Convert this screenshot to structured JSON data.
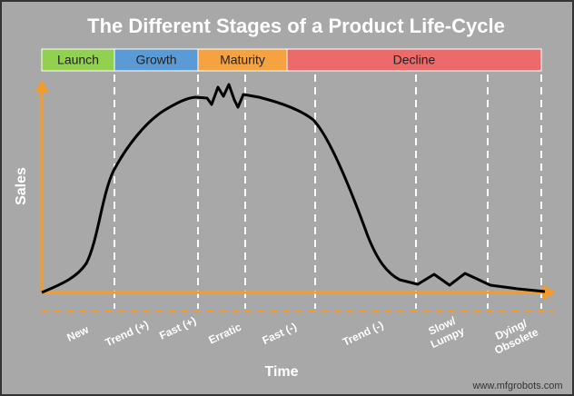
{
  "title": "The Different Stages of a Product Life-Cycle",
  "stages": [
    "Launch",
    "Growth",
    "Maturity",
    "Decline"
  ],
  "phases": [
    [
      "New"
    ],
    [
      "Trend (+)"
    ],
    [
      "Fast (+)"
    ],
    [
      "Erratic"
    ],
    [
      "Fast  (-)"
    ],
    [
      "Trend (-)"
    ],
    [
      "Slow/",
      "Lumpy"
    ],
    [
      "Dying/",
      "Obsolete"
    ]
  ],
  "y_axis_label": "Sales",
  "x_axis_label": "Time",
  "watermark": "www.mfgrobots.com"
}
